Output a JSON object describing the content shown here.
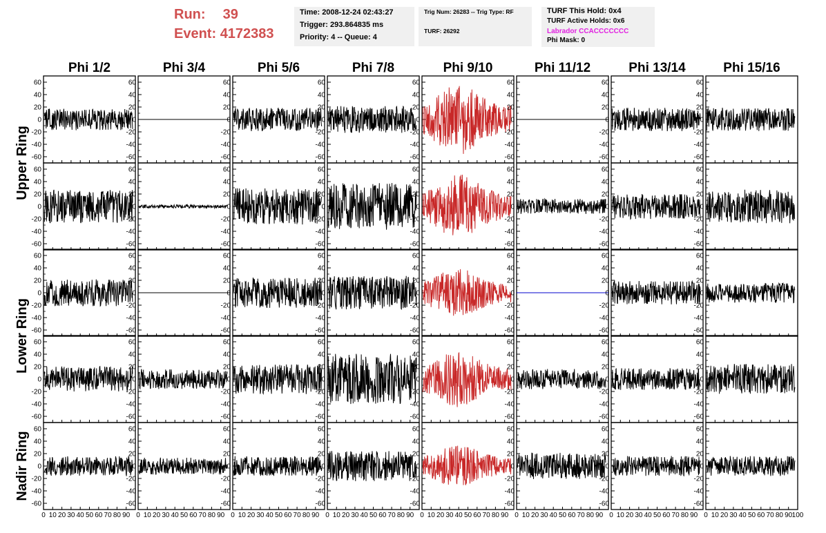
{
  "header": {
    "run_label": "Run:",
    "run_value": "39",
    "event_label": "Event:",
    "event_value": "4172383",
    "run_color": "#d05050",
    "time": "Time: 2008-12-24 02:43:27",
    "trigger": "Trigger: 293.864835 ms",
    "priority": "Priority: 4 -- Queue: 4",
    "trig_num": "Trig Num: 26283 -- Trig Type: RF",
    "turf": "TURF: 26292",
    "turf_hold": "TURF This Hold: 0x4",
    "turf_active": "TURF Active Holds: 0x6",
    "labrador": "Labrador CCACCCCCCC",
    "labrador_color": "#e020e0",
    "phi_mask": "Phi Mask: 0"
  },
  "columns": [
    "Phi 1/2",
    "Phi 3/4",
    "Phi 5/6",
    "Phi 7/8",
    "Phi 9/10",
    "Phi 11/12",
    "Phi 13/14",
    "Phi 15/16"
  ],
  "ring_labels": [
    {
      "label": "Upper Ring",
      "rows": [
        0,
        1
      ]
    },
    {
      "label": "Lower Ring",
      "rows": [
        2,
        3
      ]
    },
    {
      "label": "Nadir Ring",
      "rows": [
        4,
        4
      ]
    }
  ],
  "colors": {
    "normal": "#000000",
    "triggered": "#c82828",
    "flat_blue": "#0000cc"
  },
  "chart_data": {
    "type": "line",
    "description_of_layout": "",
    "xlim": [
      0,
      100
    ],
    "ylim": [
      -70,
      70
    ],
    "y_ticks": [
      -60,
      -40,
      -20,
      0,
      20,
      40,
      60
    ],
    "x_ticks": [
      0,
      10,
      20,
      30,
      40,
      50,
      60,
      70,
      80,
      90,
      100
    ],
    "x_tick_labels_bottom": [
      "0",
      "10",
      "20",
      "30",
      "40",
      "50",
      "60",
      "70",
      "80",
      "90",
      "100"
    ],
    "panels": [
      [
        {
          "amp": 13,
          "state": "signal"
        },
        {
          "amp": 0,
          "state": "flat"
        },
        {
          "amp": 14,
          "state": "signal"
        },
        {
          "amp": 16,
          "state": "signal"
        },
        {
          "amp": 35,
          "state": "triggered"
        },
        {
          "amp": 0,
          "state": "flat"
        },
        {
          "amp": 14,
          "state": "signal"
        },
        {
          "amp": 14,
          "state": "signal"
        }
      ],
      [
        {
          "amp": 20,
          "state": "signal"
        },
        {
          "amp": 2,
          "state": "signal"
        },
        {
          "amp": 22,
          "state": "signal"
        },
        {
          "amp": 28,
          "state": "signal"
        },
        {
          "amp": 32,
          "state": "triggered"
        },
        {
          "amp": 9,
          "state": "signal"
        },
        {
          "amp": 15,
          "state": "signal"
        },
        {
          "amp": 20,
          "state": "signal"
        }
      ],
      [
        {
          "amp": 16,
          "state": "signal"
        },
        {
          "amp": 0,
          "state": "flat"
        },
        {
          "amp": 18,
          "state": "signal"
        },
        {
          "amp": 20,
          "state": "signal"
        },
        {
          "amp": 25,
          "state": "triggered"
        },
        {
          "amp": 0,
          "state": "flat_blue"
        },
        {
          "amp": 14,
          "state": "signal"
        },
        {
          "amp": 12,
          "state": "signal"
        }
      ],
      [
        {
          "amp": 15,
          "state": "signal"
        },
        {
          "amp": 12,
          "state": "signal"
        },
        {
          "amp": 18,
          "state": "signal"
        },
        {
          "amp": 30,
          "state": "signal"
        },
        {
          "amp": 28,
          "state": "triggered"
        },
        {
          "amp": 12,
          "state": "signal"
        },
        {
          "amp": 13,
          "state": "signal"
        },
        {
          "amp": 18,
          "state": "signal"
        }
      ],
      [
        {
          "amp": 12,
          "state": "signal"
        },
        {
          "amp": 10,
          "state": "signal"
        },
        {
          "amp": 12,
          "state": "signal"
        },
        {
          "amp": 18,
          "state": "signal"
        },
        {
          "amp": 22,
          "state": "triggered"
        },
        {
          "amp": 16,
          "state": "signal"
        },
        {
          "amp": 12,
          "state": "signal"
        },
        {
          "amp": 12,
          "state": "signal"
        }
      ]
    ]
  }
}
